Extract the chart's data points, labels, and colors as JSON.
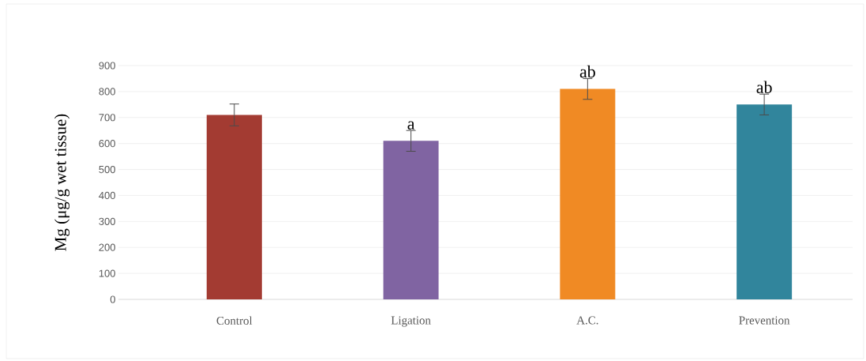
{
  "chart_data": {
    "type": "bar",
    "ylabel": "Mg (μg/g wet tissue)",
    "categories": [
      "Control",
      "Ligation",
      "A.C.",
      "Prevention"
    ],
    "values": [
      710,
      610,
      810,
      750
    ],
    "errors": [
      42,
      40,
      40,
      40
    ],
    "colors": [
      "#a33b32",
      "#8064a2",
      "#f08a24",
      "#31859c"
    ],
    "ylim": [
      0,
      900
    ],
    "yticks": [
      0,
      100,
      200,
      300,
      400,
      500,
      600,
      700,
      800,
      900
    ],
    "grid": "y",
    "annotations": [
      {
        "text": "a",
        "x": "Ligation",
        "y": 650
      },
      {
        "text": "ab",
        "x": "A.C.",
        "y": 850
      },
      {
        "text": "ab",
        "x": "Prevention",
        "y": 790
      }
    ]
  }
}
